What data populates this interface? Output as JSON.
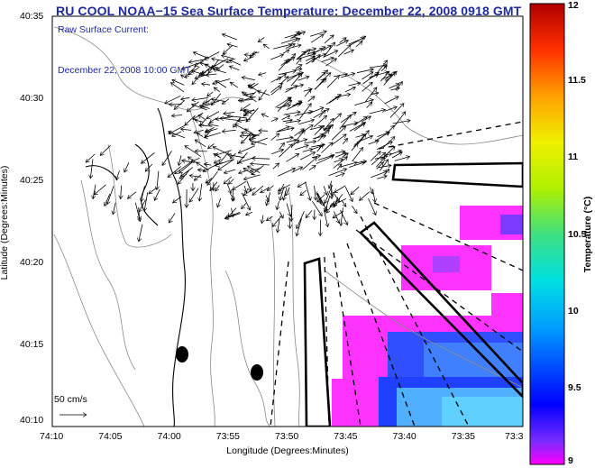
{
  "title": "RU COOL  NOAA−15  Sea Surface Temperature:  December 22, 2008 0918 GMT",
  "annotations": {
    "current_label": "Raw Surface Current:",
    "current_time": "December 22, 2008 10:00 GMT",
    "scale_label": "50 cm/s"
  },
  "axes": {
    "xlabel": "Longitude (Degrees:Minutes)",
    "ylabel": "Latitude (Degrees:Minutes)",
    "xticks": [
      "74:10",
      "74:05",
      "74:00",
      "73:55",
      "73:50",
      "73:45",
      "73:40",
      "73:35",
      "73:3"
    ],
    "yticks": [
      "40:35",
      "40:30",
      "40:25",
      "40:20",
      "40:15",
      "40:10"
    ]
  },
  "colorbar": {
    "label": "Temperature (°C)",
    "ticks": [
      "12",
      "11.5",
      "11",
      "10.5",
      "10",
      "9.5",
      "9"
    ],
    "range": [
      9,
      12
    ]
  },
  "colors": {
    "title": "#1e2a9e",
    "coast": "#000000",
    "bathymetry": "#888888"
  },
  "chart_data": {
    "type": "heatmap",
    "title": "RU COOL NOAA-15 Sea Surface Temperature: December 22, 2008 0918 GMT",
    "xlabel": "Longitude (Degrees:Minutes)",
    "ylabel": "Latitude (Degrees:Minutes)",
    "xlim": [
      "74:10",
      "73:30"
    ],
    "ylim": [
      "40:10",
      "40:35"
    ],
    "colorbar_range": [
      9,
      12
    ],
    "overlay": "surface current vectors (50 cm/s reference)",
    "sst_patches": [
      {
        "region": "upper-right near 73:32, 40:24",
        "temp_c": 9.1
      },
      {
        "region": "center-right near 73:38, 40:21",
        "temp_c": 9.1
      },
      {
        "region": "lower-right near 73:38, 40:15",
        "temp_c": 9.3
      },
      {
        "region": "bottom-right near 73:36, 40:12",
        "temp_c": 9.6
      }
    ]
  }
}
